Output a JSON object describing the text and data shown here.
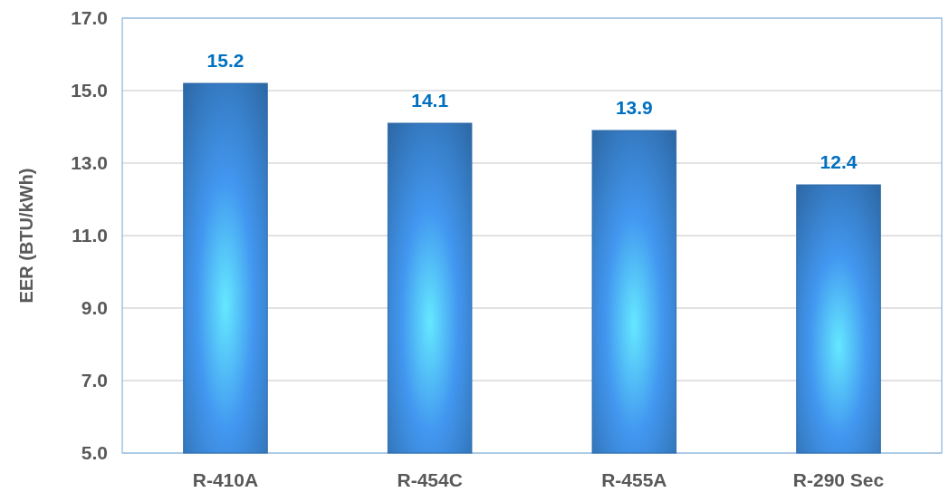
{
  "chart_data": {
    "type": "bar",
    "ylabel": "EER (BTU/kWh)",
    "categories": [
      "R-410A",
      "R-454C",
      "R-455A",
      "R-290 Sec"
    ],
    "values": [
      15.2,
      14.1,
      13.9,
      12.4
    ],
    "color": "#2e6aa8",
    "ylim": [
      5,
      17
    ],
    "yticks": [
      {
        "value": 5,
        "label": "5.0"
      },
      {
        "value": 7,
        "label": "7.0"
      },
      {
        "value": 9,
        "label": "9.0"
      },
      {
        "value": 11,
        "label": "11.0"
      },
      {
        "value": 13,
        "label": "13.0"
      },
      {
        "value": 15,
        "label": "15.0"
      },
      {
        "value": 17,
        "label": "17.0"
      }
    ],
    "grid": "y",
    "data_labels": true
  }
}
